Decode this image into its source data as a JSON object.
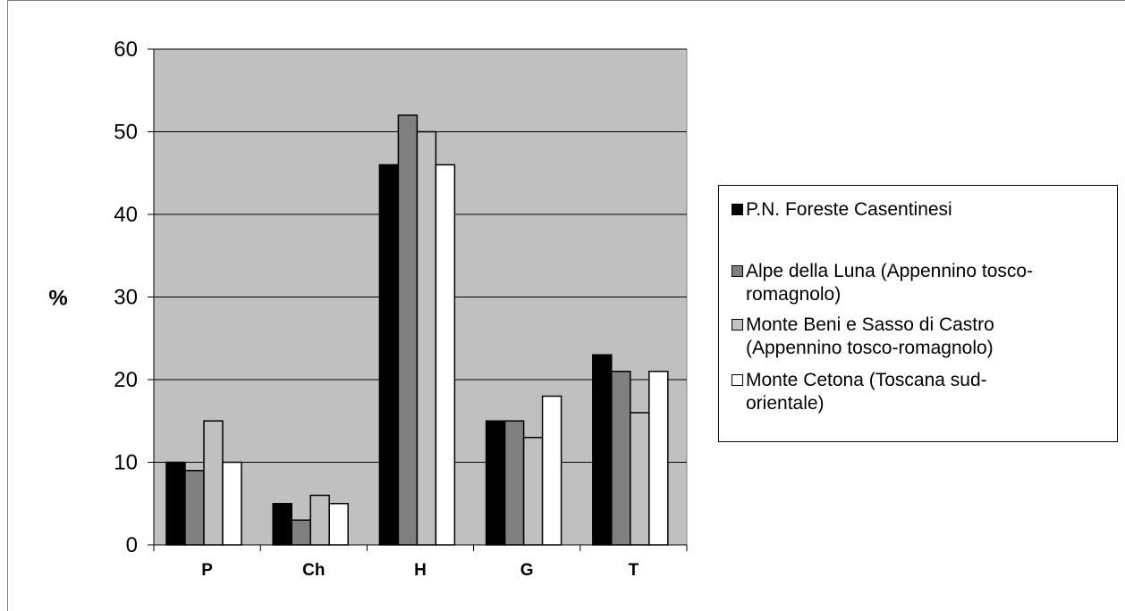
{
  "chart_data": {
    "type": "bar",
    "categories": [
      "P",
      "Ch",
      "H",
      "G",
      "T"
    ],
    "series": [
      {
        "name": "P.N. Foreste Casentinesi",
        "values": [
          10,
          5,
          46,
          15,
          23
        ],
        "color": "#000000"
      },
      {
        "name": "Alpe della Luna (Appennino tosco-romagnolo)",
        "values": [
          9,
          3,
          52,
          15,
          21
        ],
        "color": "#808080"
      },
      {
        "name": "Monte Beni e Sasso di Castro (Appennino tosco-romagnolo)",
        "values": [
          15,
          6,
          50,
          13,
          16
        ],
        "color": "#c0c0c0"
      },
      {
        "name": "Monte Cetona (Toscana sud-orientale)",
        "values": [
          10,
          5,
          46,
          18,
          21
        ],
        "color": "#ffffff"
      }
    ],
    "title": "",
    "xlabel": "",
    "ylabel": "%",
    "ylim": [
      0,
      60
    ],
    "yticks": [
      "0",
      "10",
      "20",
      "30",
      "40",
      "50",
      "60"
    ],
    "grid": true,
    "plot_background": "#c0c0c0",
    "legend_position": "right"
  },
  "legend": {
    "items": [
      {
        "label_lines": [
          "P.N. Foreste Casentinesi"
        ]
      },
      {
        "label_lines": [
          "Alpe della Luna (Appennino tosco-",
          "romagnolo)"
        ]
      },
      {
        "label_lines": [
          "Monte Beni e Sasso di Castro",
          "(Appennino tosco-romagnolo)"
        ]
      },
      {
        "label_lines": [
          "Monte Cetona (Toscana sud-",
          "orientale)"
        ]
      }
    ]
  }
}
